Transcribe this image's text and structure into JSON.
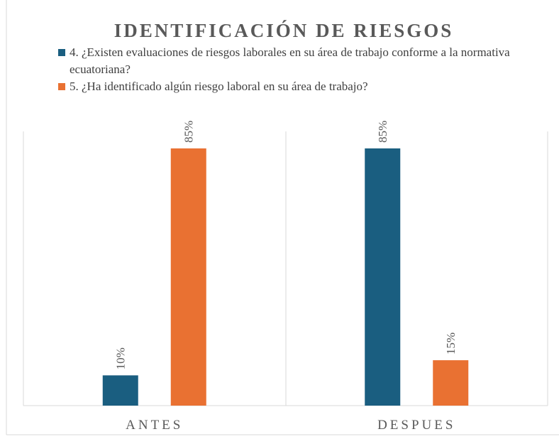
{
  "chart_data": {
    "type": "bar",
    "title": "IDENTIFICACIÓN DE RIESGOS",
    "categories": [
      "ANTES",
      "DESPUES"
    ],
    "series": [
      {
        "name": "4. ¿Existen evaluaciones de riesgos laborales en su área de trabajo conforme a la normativa ecuatoriana?",
        "color": "#1a5e80",
        "values": [
          10,
          85
        ],
        "value_labels": [
          "10%",
          "85%"
        ]
      },
      {
        "name": "5. ¿Ha identificado algún riesgo laboral en su área de trabajo?",
        "color": "#e97132",
        "values": [
          85,
          15
        ],
        "value_labels": [
          "85%",
          "15%"
        ]
      }
    ],
    "legend": "top"
  }
}
